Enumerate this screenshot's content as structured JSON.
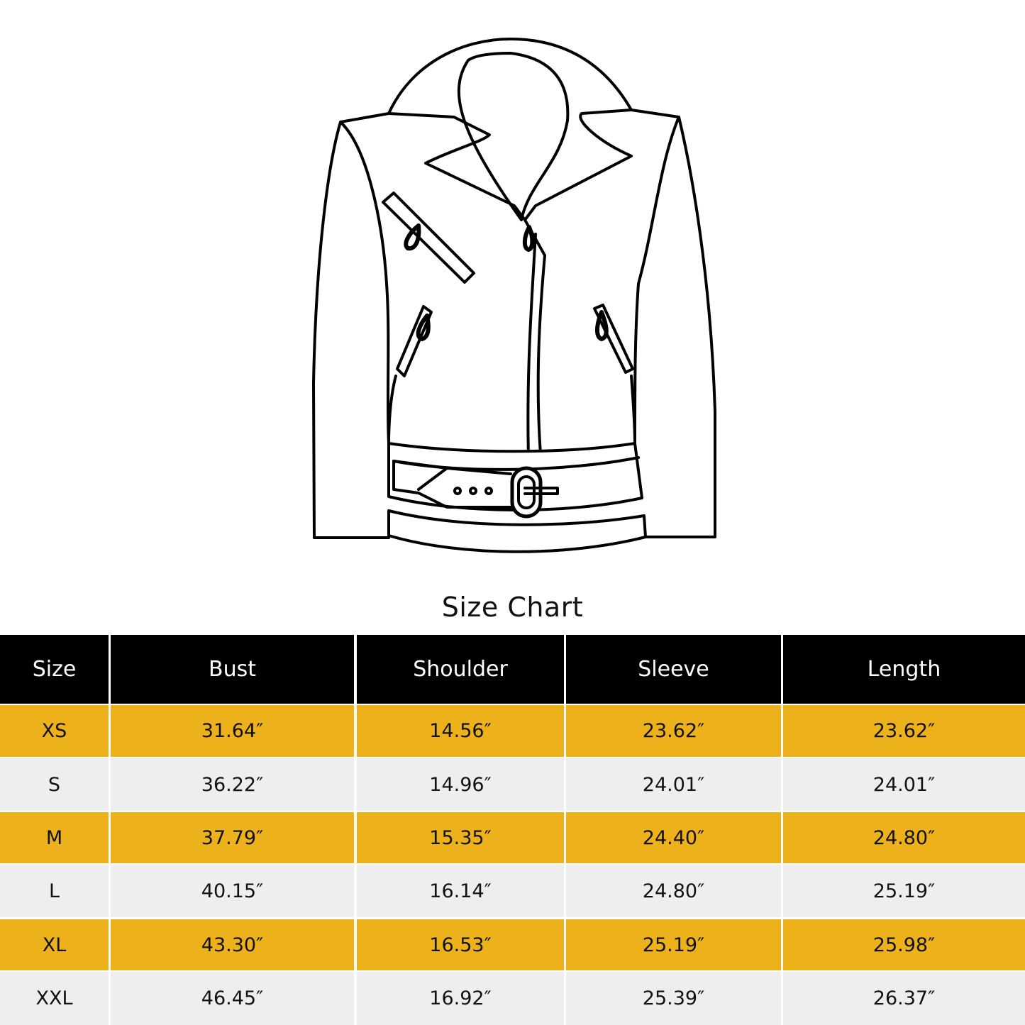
{
  "title": "Size Chart",
  "illustration": {
    "icon": "leather-jacket-outline-icon"
  },
  "colors": {
    "header_bg": "#000000",
    "header_text": "#ffffff",
    "row_accent": "#EDB11B",
    "row_alt": "#EEEEEE",
    "text": "#111111"
  },
  "table": {
    "headers": [
      "Size",
      "Bust",
      "Shoulder",
      "Sleeve",
      "Length"
    ],
    "rows": [
      [
        "XS",
        "31.64″",
        "14.56″",
        "23.62″",
        "23.62″"
      ],
      [
        "S",
        "36.22″",
        "14.96″",
        "24.01″",
        "24.01″"
      ],
      [
        "M",
        "37.79″",
        "15.35″",
        "24.40″",
        "24.80″"
      ],
      [
        "L",
        "40.15″",
        "16.14″",
        "24.80″",
        "25.19″"
      ],
      [
        "XL",
        "43.30″",
        "16.53″",
        "25.19″",
        "25.98″"
      ],
      [
        "XXL",
        "46.45″",
        "16.92″",
        "25.39″",
        "26.37″"
      ]
    ]
  }
}
